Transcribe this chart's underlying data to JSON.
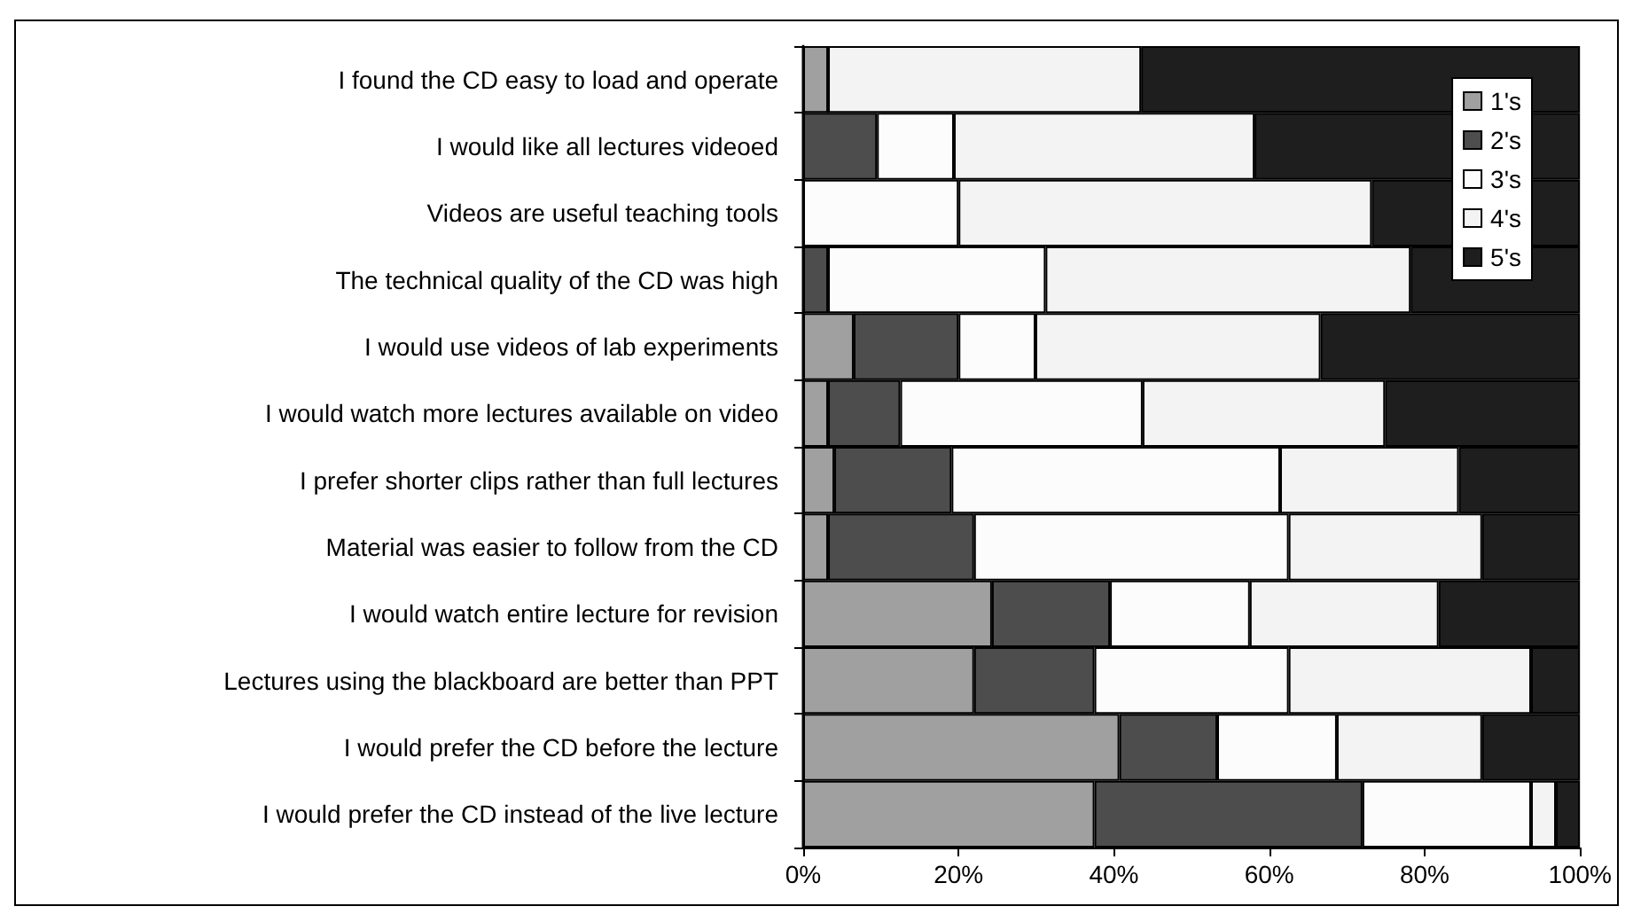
{
  "chart_data": {
    "type": "bar",
    "orientation": "horizontal",
    "stacked": true,
    "categories": [
      "I found the CD easy to load and operate",
      "I would like all lectures videoed",
      "Videos are useful teaching tools",
      "The technical quality of the CD was high",
      "I would use videos of lab experiments",
      "I would watch more lectures available on video",
      "I prefer shorter clips rather than full lectures",
      "Material was easier to follow from the CD",
      "I would watch entire lecture for revision",
      "Lectures using the blackboard are better than PPT",
      "I would prefer the CD before the lecture",
      "I would prefer the CD instead of the live lecture"
    ],
    "series": [
      {
        "name": "1's",
        "color": "#a0a0a0",
        "values": [
          3.2,
          0,
          0,
          0,
          6.5,
          3.2,
          4.0,
          3.2,
          24.3,
          22.0,
          40.7,
          37.5
        ]
      },
      {
        "name": "2's",
        "color": "#4d4d4d",
        "values": [
          0,
          9.5,
          0,
          3.2,
          13.5,
          9.3,
          15.1,
          18.8,
          15.2,
          15.5,
          12.6,
          34.5
        ]
      },
      {
        "name": "3's",
        "color": "#fcfcfc",
        "values": [
          0,
          9.9,
          20.0,
          28.0,
          9.9,
          31.2,
          42.3,
          40.5,
          18.0,
          25.0,
          15.4,
          21.7
        ]
      },
      {
        "name": "4's",
        "color": "#f3f3f3",
        "values": [
          40.3,
          38.7,
          53.2,
          47.0,
          36.7,
          31.2,
          23.0,
          24.9,
          24.3,
          31.2,
          18.7,
          3.2
        ]
      },
      {
        "name": "5's",
        "color": "#1e1e1e",
        "values": [
          56.5,
          41.9,
          26.8,
          21.8,
          33.4,
          25.1,
          15.6,
          12.6,
          18.2,
          6.3,
          12.6,
          3.1
        ]
      }
    ],
    "xlim": [
      0,
      100
    ],
    "xticks": [
      {
        "value": 0,
        "label": "0%"
      },
      {
        "value": 20,
        "label": "20%"
      },
      {
        "value": 40,
        "label": "40%"
      },
      {
        "value": 60,
        "label": "60%"
      },
      {
        "value": 80,
        "label": "80%"
      },
      {
        "value": 100,
        "label": "100%"
      }
    ],
    "grid": false,
    "legend": "top right"
  }
}
